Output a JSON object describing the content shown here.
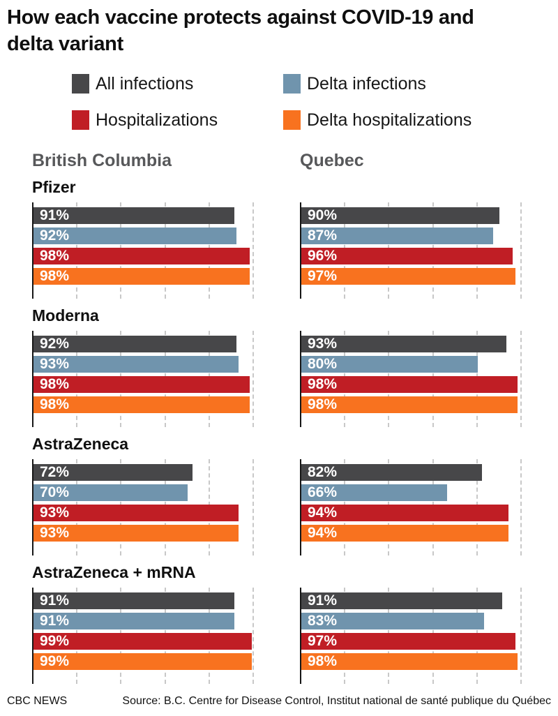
{
  "title": {
    "line1": "How each vaccine protects against COVID-19 and",
    "line2": "delta variant"
  },
  "legend": {
    "items": [
      {
        "label": "All infections",
        "color": "#474749"
      },
      {
        "label": "Delta infections",
        "color": "#7094ad"
      },
      {
        "label": "Hospitalizations",
        "color": "#c01e25"
      },
      {
        "label": "Delta hospitalizations",
        "color": "#f8721f"
      }
    ]
  },
  "columns": [
    "British Columbia",
    "Quebec"
  ],
  "chart_data": {
    "type": "bar",
    "orientation": "horizontal",
    "unit": "%",
    "xlim": [
      0,
      100
    ],
    "gridlines_pct": [
      20,
      40,
      60,
      80,
      100
    ],
    "grid_style": "dashed",
    "series_labels": [
      "All infections",
      "Delta infections",
      "Hospitalizations",
      "Delta hospitalizations"
    ],
    "series_colors": [
      "#474749",
      "#7094ad",
      "#c01e25",
      "#f8721f"
    ],
    "regions": [
      "british_columbia",
      "quebec"
    ],
    "groups": [
      {
        "vaccine": "Pfizer",
        "british_columbia": [
          91,
          92,
          98,
          98
        ],
        "quebec": [
          90,
          87,
          96,
          97
        ]
      },
      {
        "vaccine": "Moderna",
        "british_columbia": [
          92,
          93,
          98,
          98
        ],
        "quebec": [
          93,
          80,
          98,
          98
        ]
      },
      {
        "vaccine": "AstraZeneca",
        "british_columbia": [
          72,
          70,
          93,
          93
        ],
        "quebec": [
          82,
          66,
          94,
          94
        ]
      },
      {
        "vaccine": "AstraZeneca + mRNA",
        "british_columbia": [
          91,
          91,
          99,
          99
        ],
        "quebec": [
          91,
          83,
          97,
          98
        ]
      }
    ]
  },
  "footer": {
    "brand": "CBC NEWS",
    "source": "Source: B.C. Centre for Disease Control, Institut national de santé publique du Québec"
  }
}
